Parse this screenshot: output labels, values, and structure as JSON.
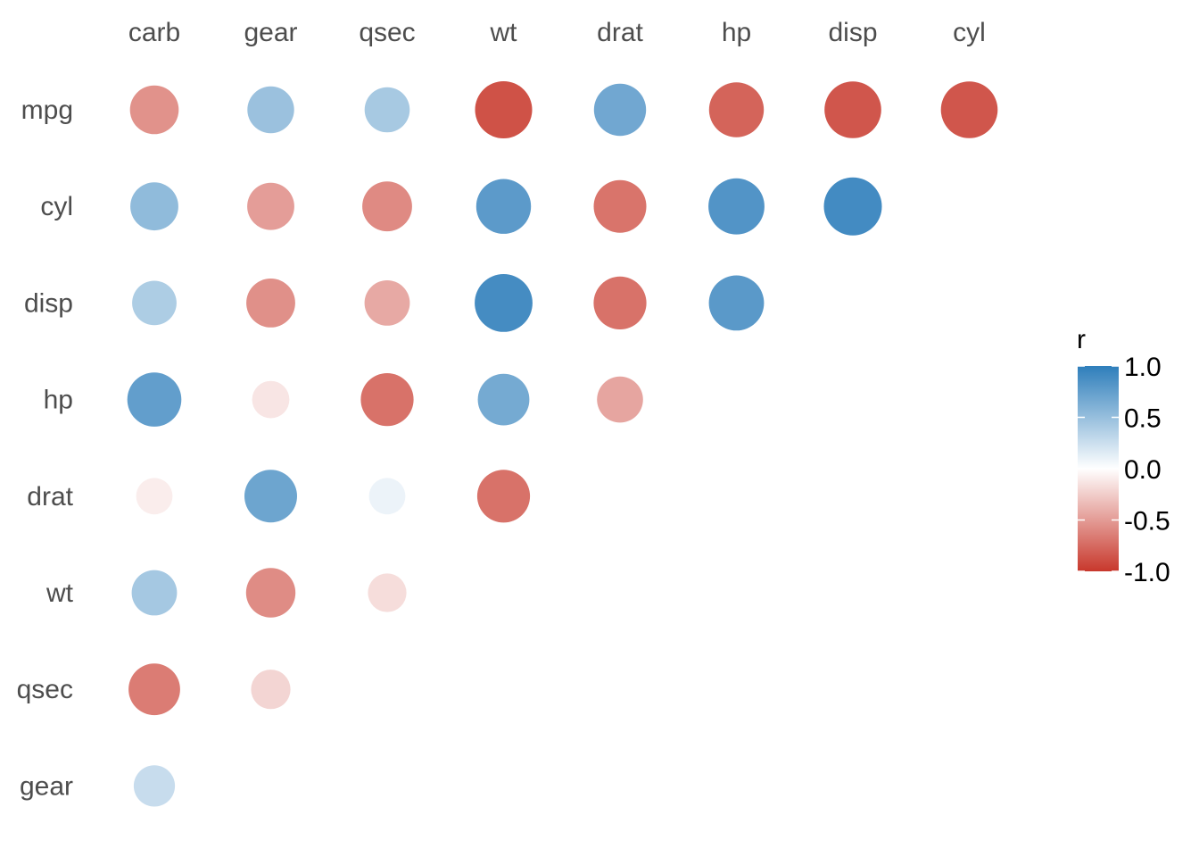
{
  "chart_data": {
    "type": "heatmap",
    "style": "circle correlation matrix (lower triangle)",
    "columns": [
      "carb",
      "gear",
      "qsec",
      "wt",
      "drat",
      "hp",
      "disp",
      "cyl"
    ],
    "rows": [
      "mpg",
      "cyl",
      "disp",
      "hp",
      "drat",
      "wt",
      "qsec",
      "gear"
    ],
    "values": [
      [
        -0.55,
        0.48,
        0.42,
        -0.87,
        0.68,
        -0.78,
        -0.85,
        -0.85
      ],
      [
        0.53,
        -0.49,
        -0.59,
        0.78,
        -0.7,
        0.83,
        0.9,
        null
      ],
      [
        0.39,
        -0.56,
        -0.43,
        0.89,
        -0.71,
        0.79,
        null,
        null
      ],
      [
        0.75,
        -0.13,
        -0.71,
        0.66,
        -0.45,
        null,
        null,
        null
      ],
      [
        -0.09,
        0.7,
        0.09,
        -0.71,
        null,
        null,
        null,
        null
      ],
      [
        0.43,
        -0.58,
        -0.17,
        null,
        null,
        null,
        null,
        null
      ],
      [
        -0.66,
        -0.21,
        null,
        null,
        null,
        null,
        null,
        null
      ],
      [
        0.27,
        null,
        null,
        null,
        null,
        null,
        null,
        null
      ]
    ],
    "legend": {
      "title": "r",
      "placement": "right",
      "range": [
        -1,
        1
      ],
      "ticks": [
        "1.0",
        "0.5",
        "0.0",
        "-0.5",
        "-1.0"
      ],
      "colors": {
        "low": "#C8382C",
        "mid": "#FFFFFF",
        "high": "#2E7EBB"
      }
    }
  }
}
